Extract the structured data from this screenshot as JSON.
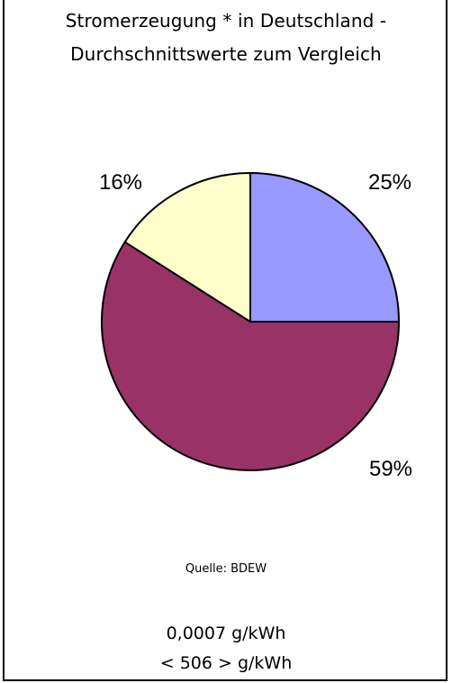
{
  "chart_data": {
    "type": "pie",
    "title": "Stromerzeugung * in Deutschland -",
    "subtitle": "Durchschnittswerte zum Vergleich",
    "slices": [
      {
        "label": "25%",
        "value": 25,
        "color": "#9999ff"
      },
      {
        "label": "59%",
        "value": 59,
        "color": "#993366"
      },
      {
        "label": "16%",
        "value": 16,
        "color": "#ffffcc"
      }
    ],
    "start_angle_deg": 0,
    "direction": "clockwise",
    "legend": "none"
  },
  "source": "Quelle: BDEW",
  "notes": [
    "0,0007 g/kWh",
    "< 506 > g/kWh"
  ]
}
